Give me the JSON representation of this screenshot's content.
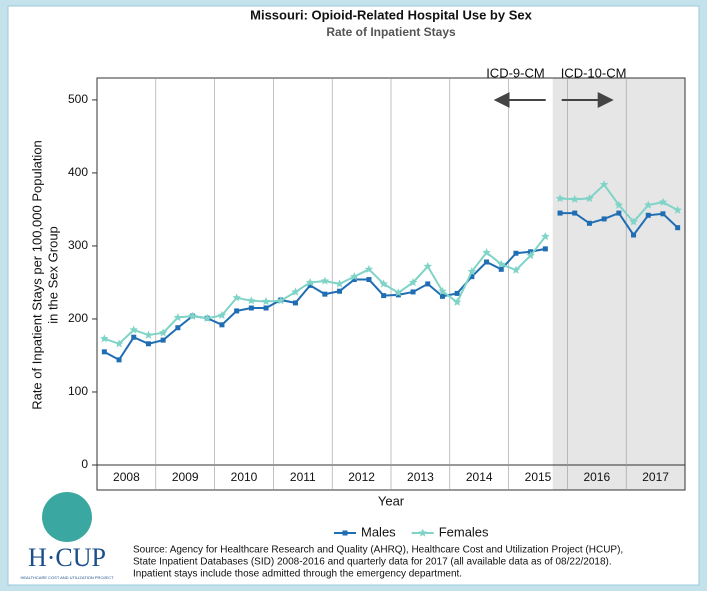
{
  "chart_data": {
    "type": "line",
    "title": "Missouri: Opioid-Related Hospital Use by Sex",
    "subtitle": "Rate of Inpatient Stays",
    "xlabel": "Year",
    "ylabel": [
      "Rate of Inpatient Stays per 100,000 Population",
      "in the Sex Group"
    ],
    "x": [
      2008.125,
      2008.375,
      2008.625,
      2008.875,
      2009.125,
      2009.375,
      2009.625,
      2009.875,
      2010.125,
      2010.375,
      2010.625,
      2010.875,
      2011.125,
      2011.375,
      2011.625,
      2011.875,
      2012.125,
      2012.375,
      2012.625,
      2012.875,
      2013.125,
      2013.375,
      2013.625,
      2013.875,
      2014.125,
      2014.375,
      2014.625,
      2014.875,
      2015.125,
      2015.375,
      2015.625,
      2015.875,
      2016.125,
      2016.375,
      2016.625,
      2016.875,
      2017.125,
      2017.375,
      2017.625,
      2017.875
    ],
    "xlim": [
      2008,
      2018
    ],
    "xticks": [
      {
        "value": 2008.5,
        "label": "2008"
      },
      {
        "value": 2009.5,
        "label": "2009"
      },
      {
        "value": 2010.5,
        "label": "2010"
      },
      {
        "value": 2011.5,
        "label": "2011"
      },
      {
        "value": 2012.5,
        "label": "2012"
      },
      {
        "value": 2013.5,
        "label": "2013"
      },
      {
        "value": 2014.5,
        "label": "2014"
      },
      {
        "value": 2015.5,
        "label": "2015"
      },
      {
        "value": 2016.5,
        "label": "2016"
      },
      {
        "value": 2017.5,
        "label": "2017"
      }
    ],
    "ylim": [
      0,
      530
    ],
    "yticks": [
      0,
      100,
      200,
      300,
      400,
      500
    ],
    "series": [
      {
        "name": "Males",
        "color": "#1f6db3",
        "marker": "square",
        "values": [
          155,
          144,
          175,
          166,
          171,
          188,
          204,
          201,
          192,
          211,
          215,
          215,
          226,
          222,
          246,
          234,
          238,
          254,
          254,
          232,
          233,
          237,
          248,
          231,
          235,
          258,
          278,
          268,
          290,
          292,
          296,
          345,
          345,
          331,
          337,
          345,
          315,
          342,
          344,
          325
        ]
      },
      {
        "name": "Females",
        "color": "#7fd4c7",
        "marker": "star",
        "values": [
          173,
          166,
          185,
          178,
          181,
          202,
          204,
          201,
          205,
          229,
          225,
          224,
          225,
          237,
          250,
          252,
          248,
          258,
          268,
          248,
          236,
          250,
          272,
          238,
          223,
          265,
          291,
          275,
          267,
          287,
          313,
          365,
          364,
          365,
          384,
          356,
          333,
          356,
          360,
          349
        ]
      }
    ],
    "shaded_region": {
      "xlim": [
        2015.75,
        2018
      ],
      "color": "#e6e6e6"
    },
    "annotations": {
      "left": "ICD-9-CM",
      "right": "ICD-10-CM"
    },
    "legend": "bottom",
    "logo_text": "H·CUP",
    "logo_subtext": "HEALTHCARE COST AND UTILIZATION PROJECT",
    "source": [
      "Source: Agency for Healthcare Research and Quality (AHRQ), Healthcare Cost and Utilization Project (HCUP),",
      "State Inpatient Databases (SID) 2008-2016 and quarterly data for 2017 (all available data as of 08/22/2018).",
      "Inpatient stays include those admitted through the emergency department."
    ]
  }
}
